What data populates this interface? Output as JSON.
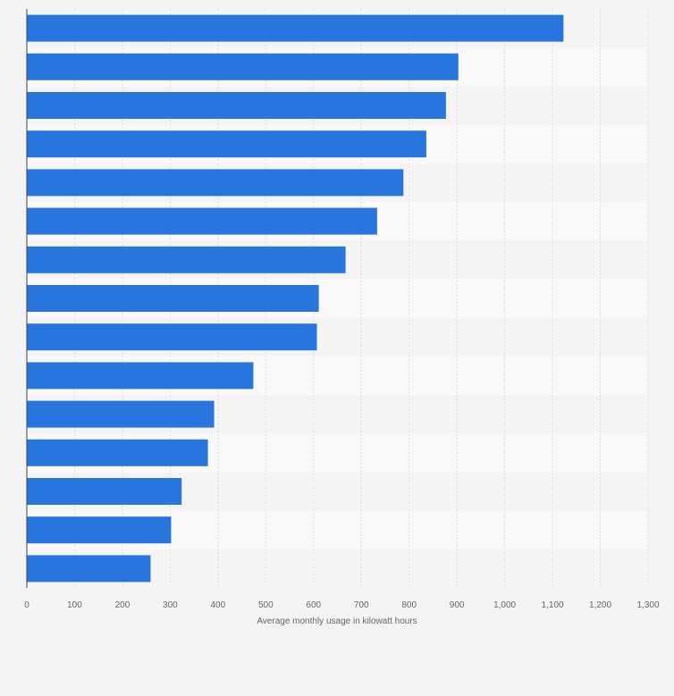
{
  "chart_data": {
    "type": "bar",
    "orientation": "horizontal",
    "title": "",
    "xlabel": "Average monthly usage in kilowatt hours",
    "ylabel": "",
    "xlim": [
      0,
      1300
    ],
    "xticks": [
      0,
      100,
      200,
      300,
      400,
      500,
      600,
      700,
      800,
      900,
      1000,
      1100,
      1200,
      1300
    ],
    "xtick_labels": [
      "0",
      "100",
      "200",
      "300",
      "400",
      "500",
      "600",
      "700",
      "800",
      "900",
      "1,000",
      "1,100",
      "1,200",
      "1,300"
    ],
    "categories": [
      "",
      "",
      "",
      "",
      "",
      "",
      "",
      "",
      "",
      "",
      "",
      "",
      "",
      "",
      ""
    ],
    "values": [
      1123,
      903,
      877,
      836,
      788,
      733,
      667,
      611,
      607,
      474,
      392,
      379,
      324,
      302,
      259
    ],
    "grid": true,
    "legend": "none",
    "colors": {
      "bar": "#2876dd",
      "band_a": "#f4f4f4",
      "band_b": "#f9f9f9",
      "grid": "#dddddd",
      "axis": "#444444",
      "text": "#666666"
    }
  }
}
